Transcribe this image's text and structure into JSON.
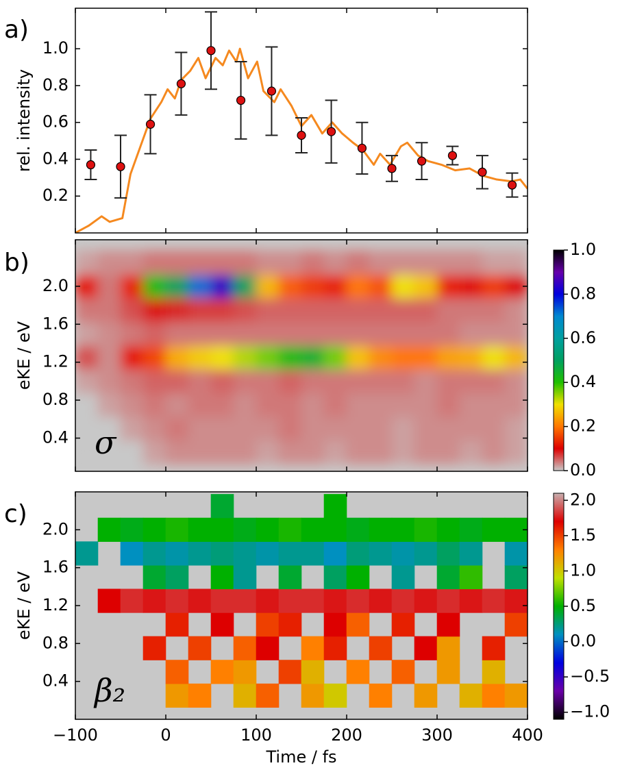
{
  "chart_data": [
    {
      "type": "line_errorbar",
      "label": "a)",
      "y_label": "rel. intensity",
      "xlim": [
        -100,
        400
      ],
      "ylim": [
        0.0,
        1.22
      ],
      "yticks": [
        0.2,
        0.4,
        0.6,
        0.8,
        {
          "value": 1.0,
          "label": "1.0"
        }
      ],
      "series": [
        {
          "style": "line",
          "color": "#f5891f",
          "x": [
            -100,
            -85,
            -71,
            -62,
            -48,
            -39,
            -28,
            -17,
            -5,
            2,
            10,
            17,
            27,
            36,
            44,
            55,
            63,
            70,
            78,
            82,
            91,
            101,
            108,
            120,
            127,
            139,
            150,
            161,
            173,
            184,
            195,
            207,
            218,
            230,
            237,
            248,
            260,
            267,
            279,
            290,
            305,
            320,
            336,
            351,
            366,
            382,
            392,
            400
          ],
          "values": [
            0.0,
            0.04,
            0.09,
            0.06,
            0.08,
            0.32,
            0.47,
            0.62,
            0.71,
            0.78,
            0.73,
            0.83,
            0.88,
            0.95,
            0.84,
            0.95,
            0.91,
            0.99,
            0.93,
            1.0,
            0.84,
            0.93,
            0.77,
            0.71,
            0.78,
            0.69,
            0.58,
            0.64,
            0.54,
            0.6,
            0.54,
            0.49,
            0.45,
            0.37,
            0.43,
            0.37,
            0.47,
            0.49,
            0.42,
            0.39,
            0.37,
            0.34,
            0.35,
            0.31,
            0.29,
            0.28,
            0.29,
            0.24
          ]
        },
        {
          "style": "errorbar",
          "color": "#dd1111",
          "x": [
            -83,
            -50,
            -17,
            17,
            50,
            83,
            117,
            150,
            183,
            217,
            250,
            283,
            317,
            350,
            383
          ],
          "values": [
            0.37,
            0.36,
            0.59,
            0.81,
            0.99,
            0.72,
            0.77,
            0.53,
            0.55,
            0.46,
            0.35,
            0.39,
            0.42,
            0.33,
            0.26
          ],
          "errors": [
            0.08,
            0.17,
            0.16,
            0.17,
            0.21,
            0.21,
            0.24,
            0.095,
            0.17,
            0.14,
            0.07,
            0.1,
            0.05,
            0.09,
            0.065
          ]
        }
      ]
    },
    {
      "type": "heatmap",
      "label": "b)",
      "y_label": "eKE / eV",
      "annotation": "σ",
      "smooth": true,
      "xlim": [
        -100,
        400
      ],
      "ylim": [
        0.05,
        2.49
      ],
      "yticks": [
        0.4,
        0.8,
        1.2,
        1.6,
        {
          "value": 2.0,
          "label": "2.0"
        }
      ],
      "x": [
        -87.5,
        -62.5,
        -37.5,
        -12.5,
        12.5,
        37.5,
        62.5,
        87.5,
        112.5,
        137.5,
        162.5,
        187.5,
        212.5,
        237.5,
        262.5,
        287.5,
        312.5,
        337.5,
        362.5,
        387.5
      ],
      "y": [
        0.25,
        0.5,
        0.75,
        1.0,
        1.25,
        1.5,
        1.75,
        2.0,
        2.25
      ],
      "z": [
        [
          0,
          0,
          0,
          0.02,
          0.03,
          0.03,
          0.03,
          0.03,
          0.02,
          0.03,
          0.03,
          0.02,
          0.03,
          0.03,
          0.02,
          0.03,
          0.03,
          0.02,
          0.03,
          0.02
        ],
        [
          0,
          0,
          0.02,
          0.03,
          0.04,
          0.03,
          0.03,
          0.03,
          0.03,
          0.04,
          0.03,
          0.03,
          0.03,
          0.03,
          0.02,
          0.03,
          0.03,
          0.03,
          0.03,
          0.02
        ],
        [
          0,
          0.02,
          0.03,
          0.04,
          0.03,
          0.04,
          0.04,
          0.03,
          0.04,
          0.04,
          0.03,
          0.04,
          0.03,
          0.03,
          0.03,
          0.03,
          0.04,
          0.03,
          0.03,
          0.03
        ],
        [
          0.02,
          0.03,
          0.04,
          0.05,
          0.05,
          0.04,
          0.05,
          0.04,
          0.04,
          0.05,
          0.04,
          0.04,
          0.04,
          0.04,
          0.04,
          0.03,
          0.04,
          0.04,
          0.04,
          0.03
        ],
        [
          0.06,
          0.03,
          0.12,
          0.16,
          0.25,
          0.28,
          0.3,
          0.33,
          0.36,
          0.42,
          0.45,
          0.36,
          0.27,
          0.22,
          0.2,
          0.2,
          0.24,
          0.25,
          0.3,
          0.26
        ],
        [
          0.02,
          0.03,
          0.04,
          0.05,
          0.04,
          0.04,
          0.04,
          0.04,
          0.04,
          0.04,
          0.04,
          0.04,
          0.04,
          0.04,
          0.04,
          0.04,
          0.04,
          0.03,
          0.03,
          0.03
        ],
        [
          0.04,
          0.04,
          0.06,
          0.09,
          0.08,
          0.07,
          0.07,
          0.06,
          0.05,
          0.05,
          0.05,
          0.05,
          0.05,
          0.05,
          0.05,
          0.05,
          0.04,
          0.04,
          0.04,
          0.03
        ],
        [
          0.12,
          0.04,
          0.13,
          0.42,
          0.5,
          0.72,
          0.85,
          0.5,
          0.26,
          0.18,
          0.15,
          0.13,
          0.2,
          0.17,
          0.3,
          0.27,
          0.13,
          0.11,
          0.15,
          0.1
        ],
        [
          0.02,
          0.03,
          0.03,
          0.04,
          0.04,
          0.04,
          0.04,
          0.04,
          0.03,
          0.03,
          0.04,
          0.03,
          0.04,
          0.03,
          0.03,
          0.03,
          0.03,
          0.03,
          0.02,
          0.02
        ]
      ],
      "zlim": [
        0.0,
        1.0
      ],
      "zticks": [
        {
          "value": 0.0,
          "label": "0.0"
        },
        0.2,
        0.4,
        0.6,
        0.8,
        {
          "value": 1.0,
          "label": "1.0"
        }
      ],
      "colors": [
        "#c8c8c8",
        "#dd0000",
        "#ff7700",
        "#f0e000",
        "#20c000",
        "#00a060",
        "#00a0a0",
        "#0088d0",
        "#0000dd",
        "#6600aa",
        "#000000"
      ]
    },
    {
      "type": "heatmap",
      "label": "c)",
      "y_label": "eKE / eV",
      "x_label": "Time / fs",
      "annotation": "β₂",
      "smooth": false,
      "xlim": [
        -100,
        400
      ],
      "ylim": [
        0.0,
        2.4
      ],
      "xticks": [
        {
          "value": -100,
          "label": "−100"
        },
        0,
        100,
        200,
        300,
        400
      ],
      "yticks": [
        0.4,
        0.8,
        1.2,
        1.6,
        {
          "value": 2.0,
          "label": "2.0"
        }
      ],
      "x": [
        -87.5,
        -62.5,
        -37.5,
        -12.5,
        12.5,
        37.5,
        62.5,
        87.5,
        112.5,
        137.5,
        162.5,
        187.5,
        212.5,
        237.5,
        262.5,
        287.5,
        312.5,
        337.5,
        362.5,
        387.5
      ],
      "y": [
        0.25,
        0.5,
        0.75,
        1.0,
        1.25,
        1.5,
        1.75,
        2.0,
        2.25
      ],
      "z": [
        [
          null,
          null,
          null,
          null,
          1.2,
          1.3,
          null,
          1.1,
          1.4,
          null,
          1.2,
          1.0,
          null,
          1.3,
          null,
          1.2,
          null,
          1.1,
          1.3,
          1.2
        ],
        [
          null,
          null,
          null,
          null,
          1.4,
          null,
          1.3,
          1.2,
          null,
          1.5,
          1.1,
          null,
          1.3,
          null,
          1.4,
          null,
          1.2,
          null,
          1.1,
          null
        ],
        [
          null,
          null,
          null,
          1.6,
          null,
          1.5,
          null,
          1.4,
          1.7,
          null,
          1.3,
          1.6,
          null,
          1.5,
          null,
          1.7,
          1.2,
          null,
          1.6,
          null
        ],
        [
          null,
          null,
          null,
          null,
          1.6,
          null,
          1.7,
          null,
          1.5,
          1.6,
          null,
          1.7,
          1.4,
          null,
          1.6,
          null,
          1.7,
          null,
          null,
          1.5
        ],
        [
          null,
          1.7,
          1.8,
          1.75,
          1.8,
          1.75,
          1.8,
          1.8,
          1.75,
          1.8,
          1.8,
          1.75,
          1.8,
          1.75,
          1.8,
          1.75,
          1.8,
          1.75,
          1.8,
          1.75
        ],
        [
          null,
          null,
          null,
          0.4,
          0.3,
          null,
          0.5,
          0.2,
          null,
          0.4,
          null,
          0.3,
          0.5,
          null,
          0.2,
          null,
          0.4,
          0.6,
          null,
          0.3
        ],
        [
          0.2,
          null,
          0.1,
          0.2,
          0.15,
          0.2,
          0.25,
          0.2,
          0.15,
          0.2,
          0.2,
          0.1,
          0.25,
          0.2,
          0.15,
          0.2,
          0.3,
          0.2,
          null,
          0.15
        ],
        [
          null,
          0.5,
          0.45,
          0.5,
          0.55,
          0.5,
          0.5,
          0.45,
          0.5,
          0.55,
          0.5,
          0.5,
          0.45,
          0.5,
          0.5,
          0.55,
          0.5,
          0.45,
          0.5,
          0.5
        ],
        [
          null,
          null,
          null,
          null,
          null,
          null,
          0.4,
          null,
          null,
          null,
          null,
          0.5,
          null,
          null,
          null,
          null,
          null,
          null,
          null,
          null
        ]
      ],
      "zlim": [
        -1.1,
        2.1
      ],
      "zticks": [
        {
          "value": -1.0,
          "label": "−1.0"
        },
        {
          "value": -0.5,
          "label": "−0.5"
        },
        {
          "value": 0.0,
          "label": "0.0"
        },
        0.5,
        {
          "value": 1.0,
          "label": "1.0"
        },
        1.5,
        {
          "value": 2.0,
          "label": "2.0"
        }
      ],
      "colors": [
        "#000000",
        "#6a00a8",
        "#0000e0",
        "#0090c0",
        "#00b000",
        "#c0e000",
        "#ff8000",
        "#dd0000",
        "#c8b0b0"
      ]
    }
  ]
}
